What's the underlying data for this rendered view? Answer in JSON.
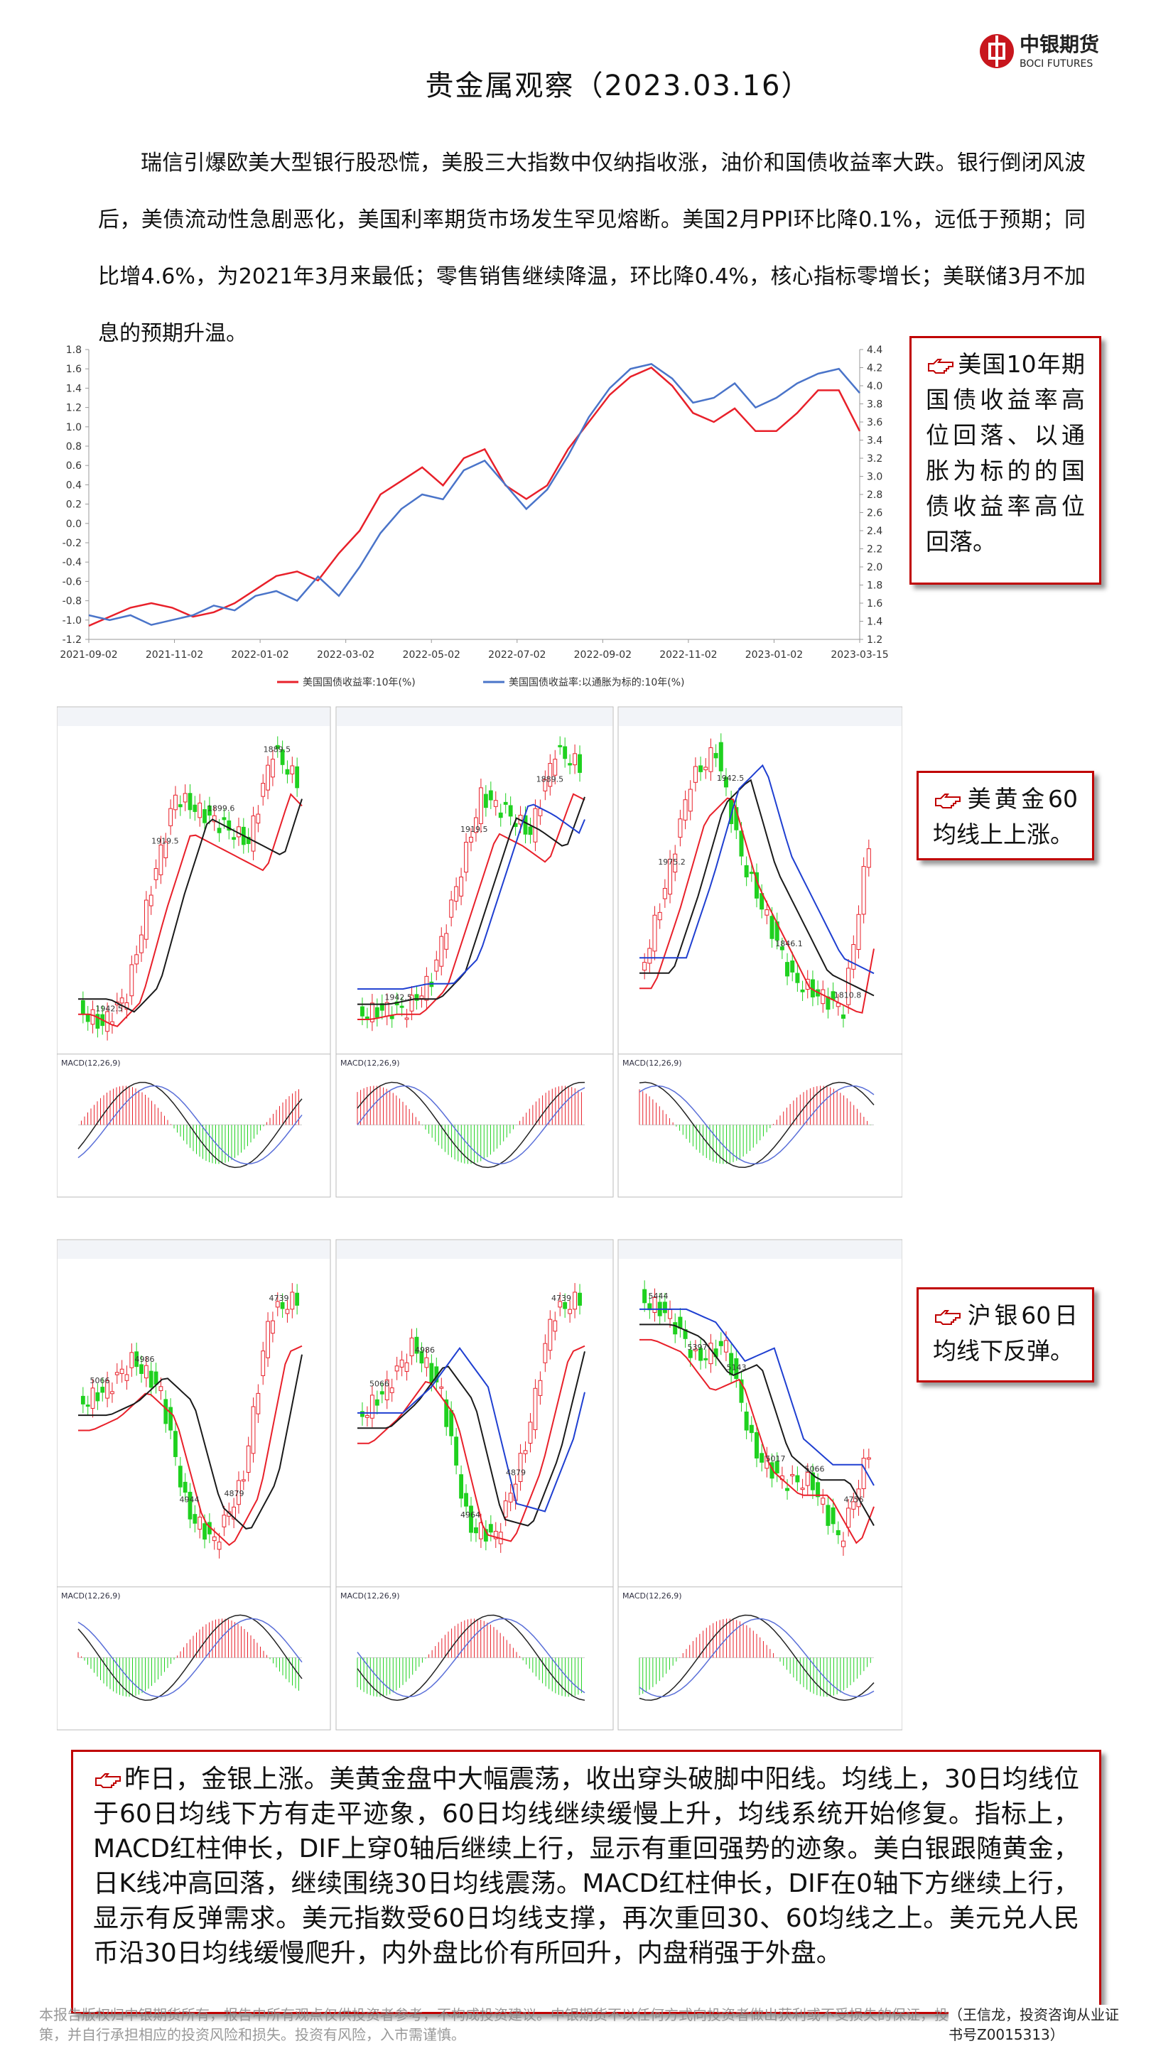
{
  "header": {
    "logo_name": "中银期货",
    "logo_sub": "BOCI FUTURES",
    "title": "贵金属观察（2023.03.16）"
  },
  "intro": "瑞信引爆欧美大型银行股恐慌，美股三大指数中仅纳指收涨，油价和国债收益率大跌。银行倒闭风波后，美债流动性急剧恶化，美国利率期货市场发生罕见熔断。美国2月PPI环比降0.1%，远低于预期；同比增4.6%，为2021年3月来最低；零售销售继续降温，环比降0.4%，核心指标零增长；美联储3月不加息的预期升温。",
  "chart_data": {
    "type": "line",
    "series": [
      {
        "name": "美国国债收益率:10年(%)",
        "color": "#e8202a",
        "axis": "y2",
        "values": [
          1.35,
          1.45,
          1.55,
          1.6,
          1.55,
          1.45,
          1.5,
          1.6,
          1.75,
          1.9,
          1.95,
          1.85,
          2.15,
          2.4,
          2.8,
          2.95,
          3.1,
          2.9,
          3.2,
          3.3,
          2.9,
          2.75,
          2.9,
          3.3,
          3.6,
          3.9,
          4.1,
          4.2,
          4.0,
          3.7,
          3.6,
          3.75,
          3.5,
          3.5,
          3.7,
          3.95,
          3.95,
          3.5
        ]
      },
      {
        "name": "美国国债收益率:以通胀为标的:10年(%)",
        "color": "#4a74c9",
        "values": [
          -0.95,
          -1.0,
          -0.95,
          -1.05,
          -1.0,
          -0.95,
          -0.85,
          -0.9,
          -0.75,
          -0.7,
          -0.8,
          -0.55,
          -0.75,
          -0.45,
          -0.1,
          0.15,
          0.3,
          0.25,
          0.55,
          0.65,
          0.4,
          0.15,
          0.35,
          0.7,
          1.1,
          1.4,
          1.6,
          1.65,
          1.5,
          1.25,
          1.3,
          1.45,
          1.2,
          1.3,
          1.45,
          1.55,
          1.6,
          1.35
        ]
      }
    ],
    "xticks": [
      "2021-09-02",
      "2021-11-02",
      "2022-01-02",
      "2022-03-02",
      "2022-05-02",
      "2022-07-02",
      "2022-09-02",
      "2022-11-02",
      "2023-01-02",
      "2023-03-15"
    ],
    "ylim": [
      -1.2,
      1.8
    ],
    "yticks": [
      -1.2,
      {
        "value": -1.0,
        "label": "-1.0"
      },
      -0.8,
      -0.6,
      -0.4,
      -0.2,
      {
        "value": 0,
        "label": "0.0"
      },
      0.2,
      0.4,
      0.6,
      0.8,
      {
        "value": 1.0,
        "label": "1.0"
      },
      1.2,
      1.4,
      1.6,
      1.8
    ],
    "y2lim": [
      1.2,
      4.4
    ],
    "y2ticks": [
      1.2,
      1.4,
      1.6,
      1.8,
      {
        "value": 2.0,
        "label": "2.0"
      },
      2.2,
      2.4,
      2.6,
      2.8,
      {
        "value": 3.0,
        "label": "3.0"
      },
      3.2,
      3.4,
      3.6,
      3.8,
      {
        "value": 4.0,
        "label": "4.0"
      },
      4.2,
      4.4
    ]
  },
  "callouts": [
    "美国10年期国债收益率高位回落、以通胀为标的的国债收益率高位回落。",
    "美黄金60均线上上涨。",
    "沪银60日均线下反弹。"
  ],
  "panels": {
    "macd": "MACD(12,26,9)",
    "items": [
      {
        "labels": [
          "1942.5",
          "1919.5",
          "1899.6",
          "1889.5"
        ]
      },
      {
        "labels": [
          "1942.5",
          "1919.5",
          "1889.5"
        ]
      },
      {
        "labels": [
          "1975.2",
          "1942.5",
          "1846.1",
          "1810.8"
        ]
      },
      {
        "labels": [
          "5066",
          "4986",
          "4944",
          "4879",
          "4739"
        ]
      },
      {
        "labels": [
          "5066",
          "4986",
          "4964",
          "4879",
          "4739"
        ]
      },
      {
        "labels": [
          "5444",
          "5397",
          "5143",
          "5017",
          "5066",
          "4756"
        ]
      }
    ]
  },
  "summary": "昨日，金银上涨。美黄金盘中大幅震荡，收出穿头破脚中阳线。均线上，30日均线位于60日均线下方有走平迹象，60日均线继续缓慢上升，均线系统开始修复。指标上，MACD红柱伸长，DIF上穿0轴后继续上行，显示有重回强势的迹象。美白银跟随黄金，日K线冲高回落，继续围绕30日均线震荡。MACD红柱伸长，DIF在0轴下方继续上行，显示有反弹需求。美元指数受60日均线支撑，再次重回30、60均线之上。美元兑人民币沿30日均线缓慢爬升，内外盘比价有所回升，内盘稍强于外盘。",
  "footer": {
    "disclaimer": "本报告版权归中银期货所有，报告中所有观点仅供投资者参考，不构成投资建议。中银期货不以任何方式向投资者做出获利或不受损失的保证，投资者应自主做出投资决策，并自行承担相应的投资风险和损失。投资有风险，入市需谨慎。",
    "analyst": "（王信龙，投资咨询从业证书号Z0015313）"
  }
}
